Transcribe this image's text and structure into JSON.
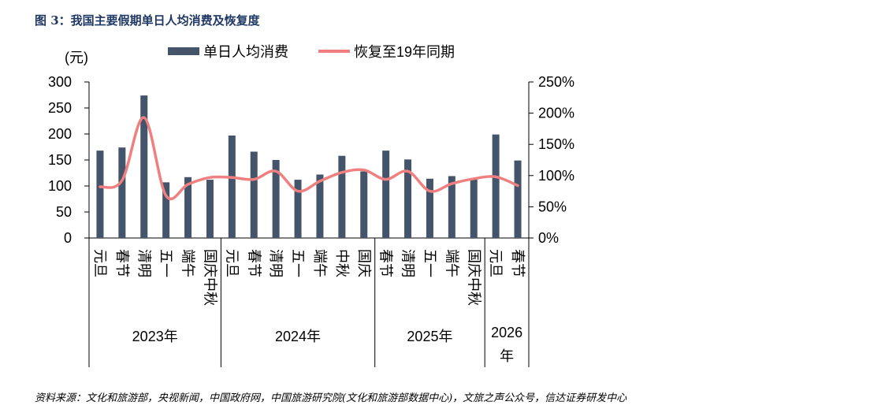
{
  "figure": {
    "title": "图 3：我国主要假期单日人均消费及恢复度",
    "source": "资料来源：文化和旅游部，央视新闻，中国政府网，中国旅游研究院(文化和旅游部数据中心)，文旅之声公众号，信达证券研发中心"
  },
  "chart_data": {
    "type": "bar",
    "categories": [
      "元旦",
      "春节",
      "清明",
      "五一",
      "端午",
      "国庆中秋",
      "元旦",
      "春节",
      "清明",
      "五一",
      "端午",
      "中秋",
      "国庆",
      "春节",
      "清明",
      "五一",
      "端午",
      "国庆中秋",
      "元旦",
      "春节"
    ],
    "groups": [
      {
        "label": "2023年",
        "start": 0,
        "end": 6
      },
      {
        "label": "2024年",
        "start": 6,
        "end": 13
      },
      {
        "label": "2025年",
        "start": 13,
        "end": 18
      },
      {
        "label": "2026年",
        "start": 18,
        "end": 20
      }
    ],
    "series": [
      {
        "name": "单日人均消费",
        "axis": "left",
        "kind": "bar",
        "color": "#44546a",
        "values": [
          168,
          174,
          274,
          107,
          117,
          112,
          197,
          166,
          150,
          112,
          122,
          158,
          128,
          168,
          151,
          114,
          119,
          115,
          199,
          149
        ]
      },
      {
        "name": "恢复至19年同期",
        "axis": "right",
        "kind": "line",
        "color": "#f08080",
        "values": [
          82,
          92,
          193,
          68,
          86,
          97,
          97,
          94,
          107,
          75,
          91,
          105,
          109,
          94,
          107,
          75,
          87,
          95,
          98,
          84
        ]
      }
    ],
    "yunit": "(元)",
    "ylim": [
      0,
      300
    ],
    "yticks": [
      0,
      50,
      100,
      150,
      200,
      250,
      300
    ],
    "y2lim": [
      0,
      250
    ],
    "y2ticks": [
      "0%",
      "50%",
      "100%",
      "150%",
      "200%",
      "250%"
    ],
    "grid": false,
    "legend_position": "top-center"
  }
}
